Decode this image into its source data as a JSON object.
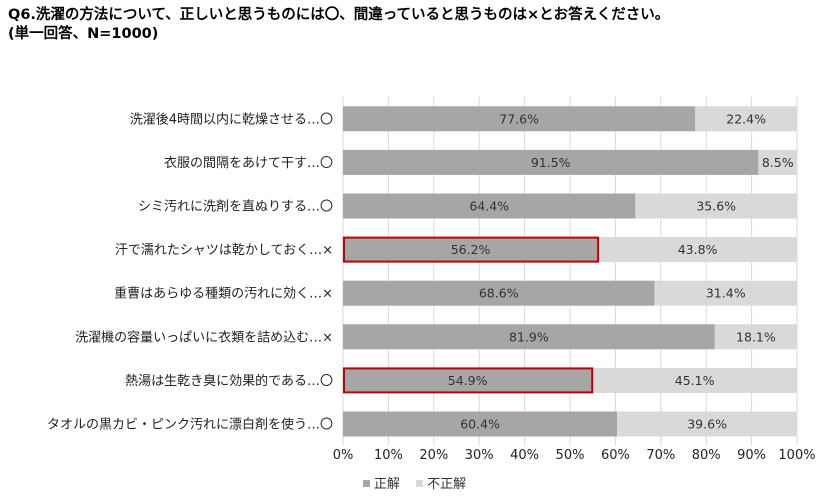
{
  "header": {
    "title_line1": "Q6.洗濯の方法について、正しいと思うものには〇、間違っていると思うものは×とお答えください。",
    "title_line2": "(単一回答、N=1000)"
  },
  "colors": {
    "correct": "#a6a6a6",
    "incorrect": "#d9d9d9",
    "highlight": "#c00000",
    "gridline": "#d9d9d9"
  },
  "chart_data": {
    "type": "bar",
    "orientation": "horizontal",
    "stacked": true,
    "categories": [
      "洗濯後4時間以内に乾燥させる…〇",
      "衣服の間隔をあけて干す…〇",
      "シミ汚れに洗剤を直ぬりする…〇",
      "汗で濡れたシャツは乾かしておく…×",
      "重曹はあらゆる種類の汚れに効く…×",
      "洗濯機の容量いっぱいに衣類を詰め込む…×",
      "熱湯は生乾き臭に効果的である…〇",
      "タオルの黒カビ・ピンク汚れに漂白剤を使う…〇"
    ],
    "series": [
      {
        "name": "正解",
        "values": [
          77.6,
          91.5,
          64.4,
          56.2,
          68.6,
          81.9,
          54.9,
          60.4
        ],
        "labels": [
          "77.6%",
          "91.5%",
          "64.4%",
          "56.2%",
          "68.6%",
          "81.9%",
          "54.9%",
          "60.4%"
        ]
      },
      {
        "name": "不正解",
        "values": [
          22.4,
          8.5,
          35.6,
          43.8,
          31.4,
          18.1,
          45.1,
          39.6
        ],
        "labels": [
          "22.4%",
          "8.5%",
          "35.6%",
          "43.8%",
          "31.4%",
          "18.1%",
          "45.1%",
          "39.6%"
        ]
      }
    ],
    "highlighted_categories": [
      3,
      6
    ],
    "xlim": [
      0,
      100
    ],
    "xticks": [
      "0%",
      "10%",
      "20%",
      "30%",
      "40%",
      "50%",
      "60%",
      "70%",
      "80%",
      "90%",
      "100%"
    ],
    "grid": true,
    "legend_position": "bottom"
  }
}
